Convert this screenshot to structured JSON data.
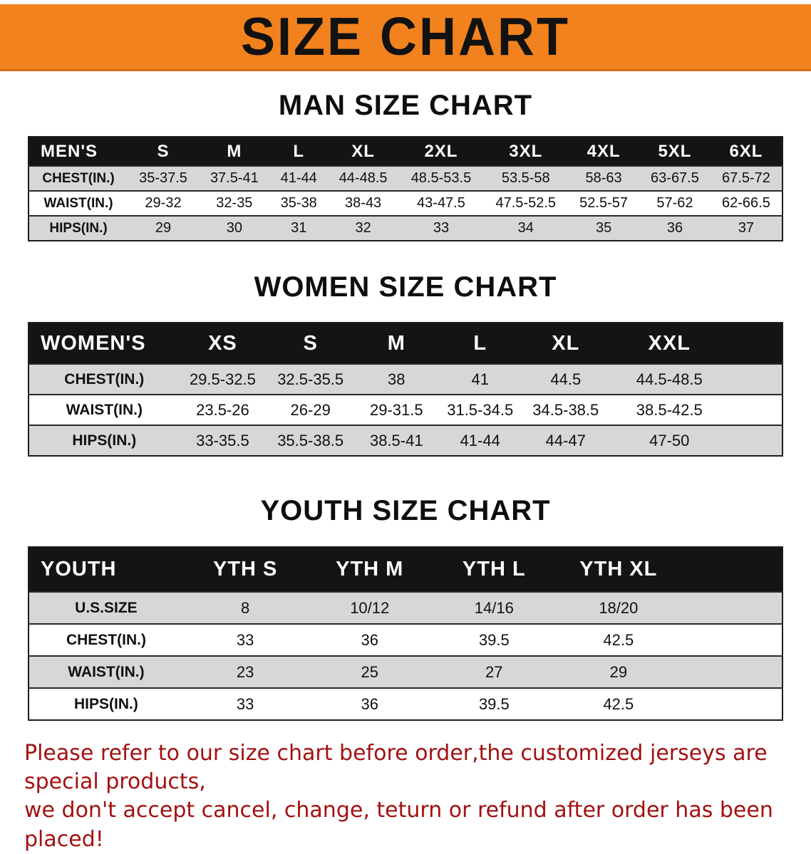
{
  "banner": {
    "title": "SIZE CHART"
  },
  "colors": {
    "banner_orange": "#F2821D",
    "table_header_black": "#141414",
    "row_gray": "#d7d7d7",
    "footer_red": "#A31111"
  },
  "sections": [
    {
      "id": "men",
      "heading": "MAN SIZE CHART",
      "table": {
        "header": [
          "MEN'S",
          "S",
          "M",
          "L",
          "XL",
          "2XL",
          "3XL",
          "4XL",
          "5XL",
          "6XL"
        ],
        "rows": [
          [
            "CHEST(IN.)",
            "35-37.5",
            "37.5-41",
            "41-44",
            "44-48.5",
            "48.5-53.5",
            "53.5-58",
            "58-63",
            "63-67.5",
            "67.5-72"
          ],
          [
            "WAIST(IN.)",
            "29-32",
            "32-35",
            "35-38",
            "38-43",
            "43-47.5",
            "47.5-52.5",
            "52.5-57",
            "57-62",
            "62-66.5"
          ],
          [
            "HIPS(IN.)",
            "29",
            "30",
            "31",
            "32",
            "33",
            "34",
            "35",
            "36",
            "37"
          ]
        ]
      }
    },
    {
      "id": "women",
      "heading": "WOMEN SIZE CHART",
      "table": {
        "header": [
          "WOMEN'S",
          "XS",
          "S",
          "M",
          "L",
          "XL",
          "XXL"
        ],
        "rows": [
          [
            "CHEST(IN.)",
            "29.5-32.5",
            "32.5-35.5",
            "38",
            "41",
            "44.5",
            "44.5-48.5"
          ],
          [
            "WAIST(IN.)",
            "23.5-26",
            "26-29",
            "29-31.5",
            "31.5-34.5",
            "34.5-38.5",
            "38.5-42.5"
          ],
          [
            "HIPS(IN.)",
            "33-35.5",
            "35.5-38.5",
            "38.5-41",
            "41-44",
            "44-47",
            "47-50"
          ]
        ]
      }
    },
    {
      "id": "youth",
      "heading": "YOUTH SIZE CHART",
      "table": {
        "header": [
          "YOUTH",
          "YTH S",
          "YTH M",
          "YTH L",
          "YTH XL"
        ],
        "rows": [
          [
            "U.S.SIZE",
            "8",
            "10/12",
            "14/16",
            "18/20"
          ],
          [
            "CHEST(IN.)",
            "33",
            "36",
            "39.5",
            "42.5"
          ],
          [
            "WAIST(IN.)",
            "23",
            "25",
            "27",
            "29"
          ],
          [
            "HIPS(IN.)",
            "33",
            "36",
            "39.5",
            "42.5"
          ]
        ]
      }
    }
  ],
  "footer": {
    "line1": "Please refer to our size chart before order,the customized jerseys are special products,",
    "line2": "we don't accept cancel, change, teturn or refund after order has been placed!"
  }
}
